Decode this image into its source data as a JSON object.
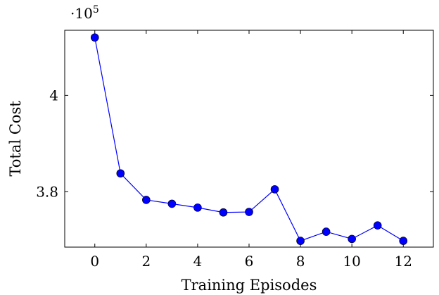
{
  "chart_data": {
    "type": "line",
    "xlabel": "Training Episodes",
    "ylabel": "Total Cost",
    "y_multiplier": {
      "base": "·10",
      "exponent": "5"
    },
    "xlim": [
      -1.17,
      13.17
    ],
    "ylim": [
      3.685,
      4.135
    ],
    "x_ticks": [
      0,
      2,
      4,
      6,
      8,
      10,
      12
    ],
    "x_tick_labels": [
      "0",
      "2",
      "4",
      "6",
      "8",
      "10",
      "12"
    ],
    "y_ticks": [
      3.8,
      4.0
    ],
    "y_tick_labels": [
      "3.8",
      "4"
    ],
    "grid": false,
    "series": [
      {
        "color": "#0000ff",
        "marker": "circle",
        "x": [
          0,
          1,
          2,
          3,
          4,
          5,
          6,
          7,
          8,
          9,
          10,
          11,
          12
        ],
        "y": [
          4.12,
          3.838,
          3.783,
          3.775,
          3.767,
          3.757,
          3.758,
          3.805,
          3.698,
          3.717,
          3.702,
          3.73,
          3.698
        ]
      }
    ]
  }
}
